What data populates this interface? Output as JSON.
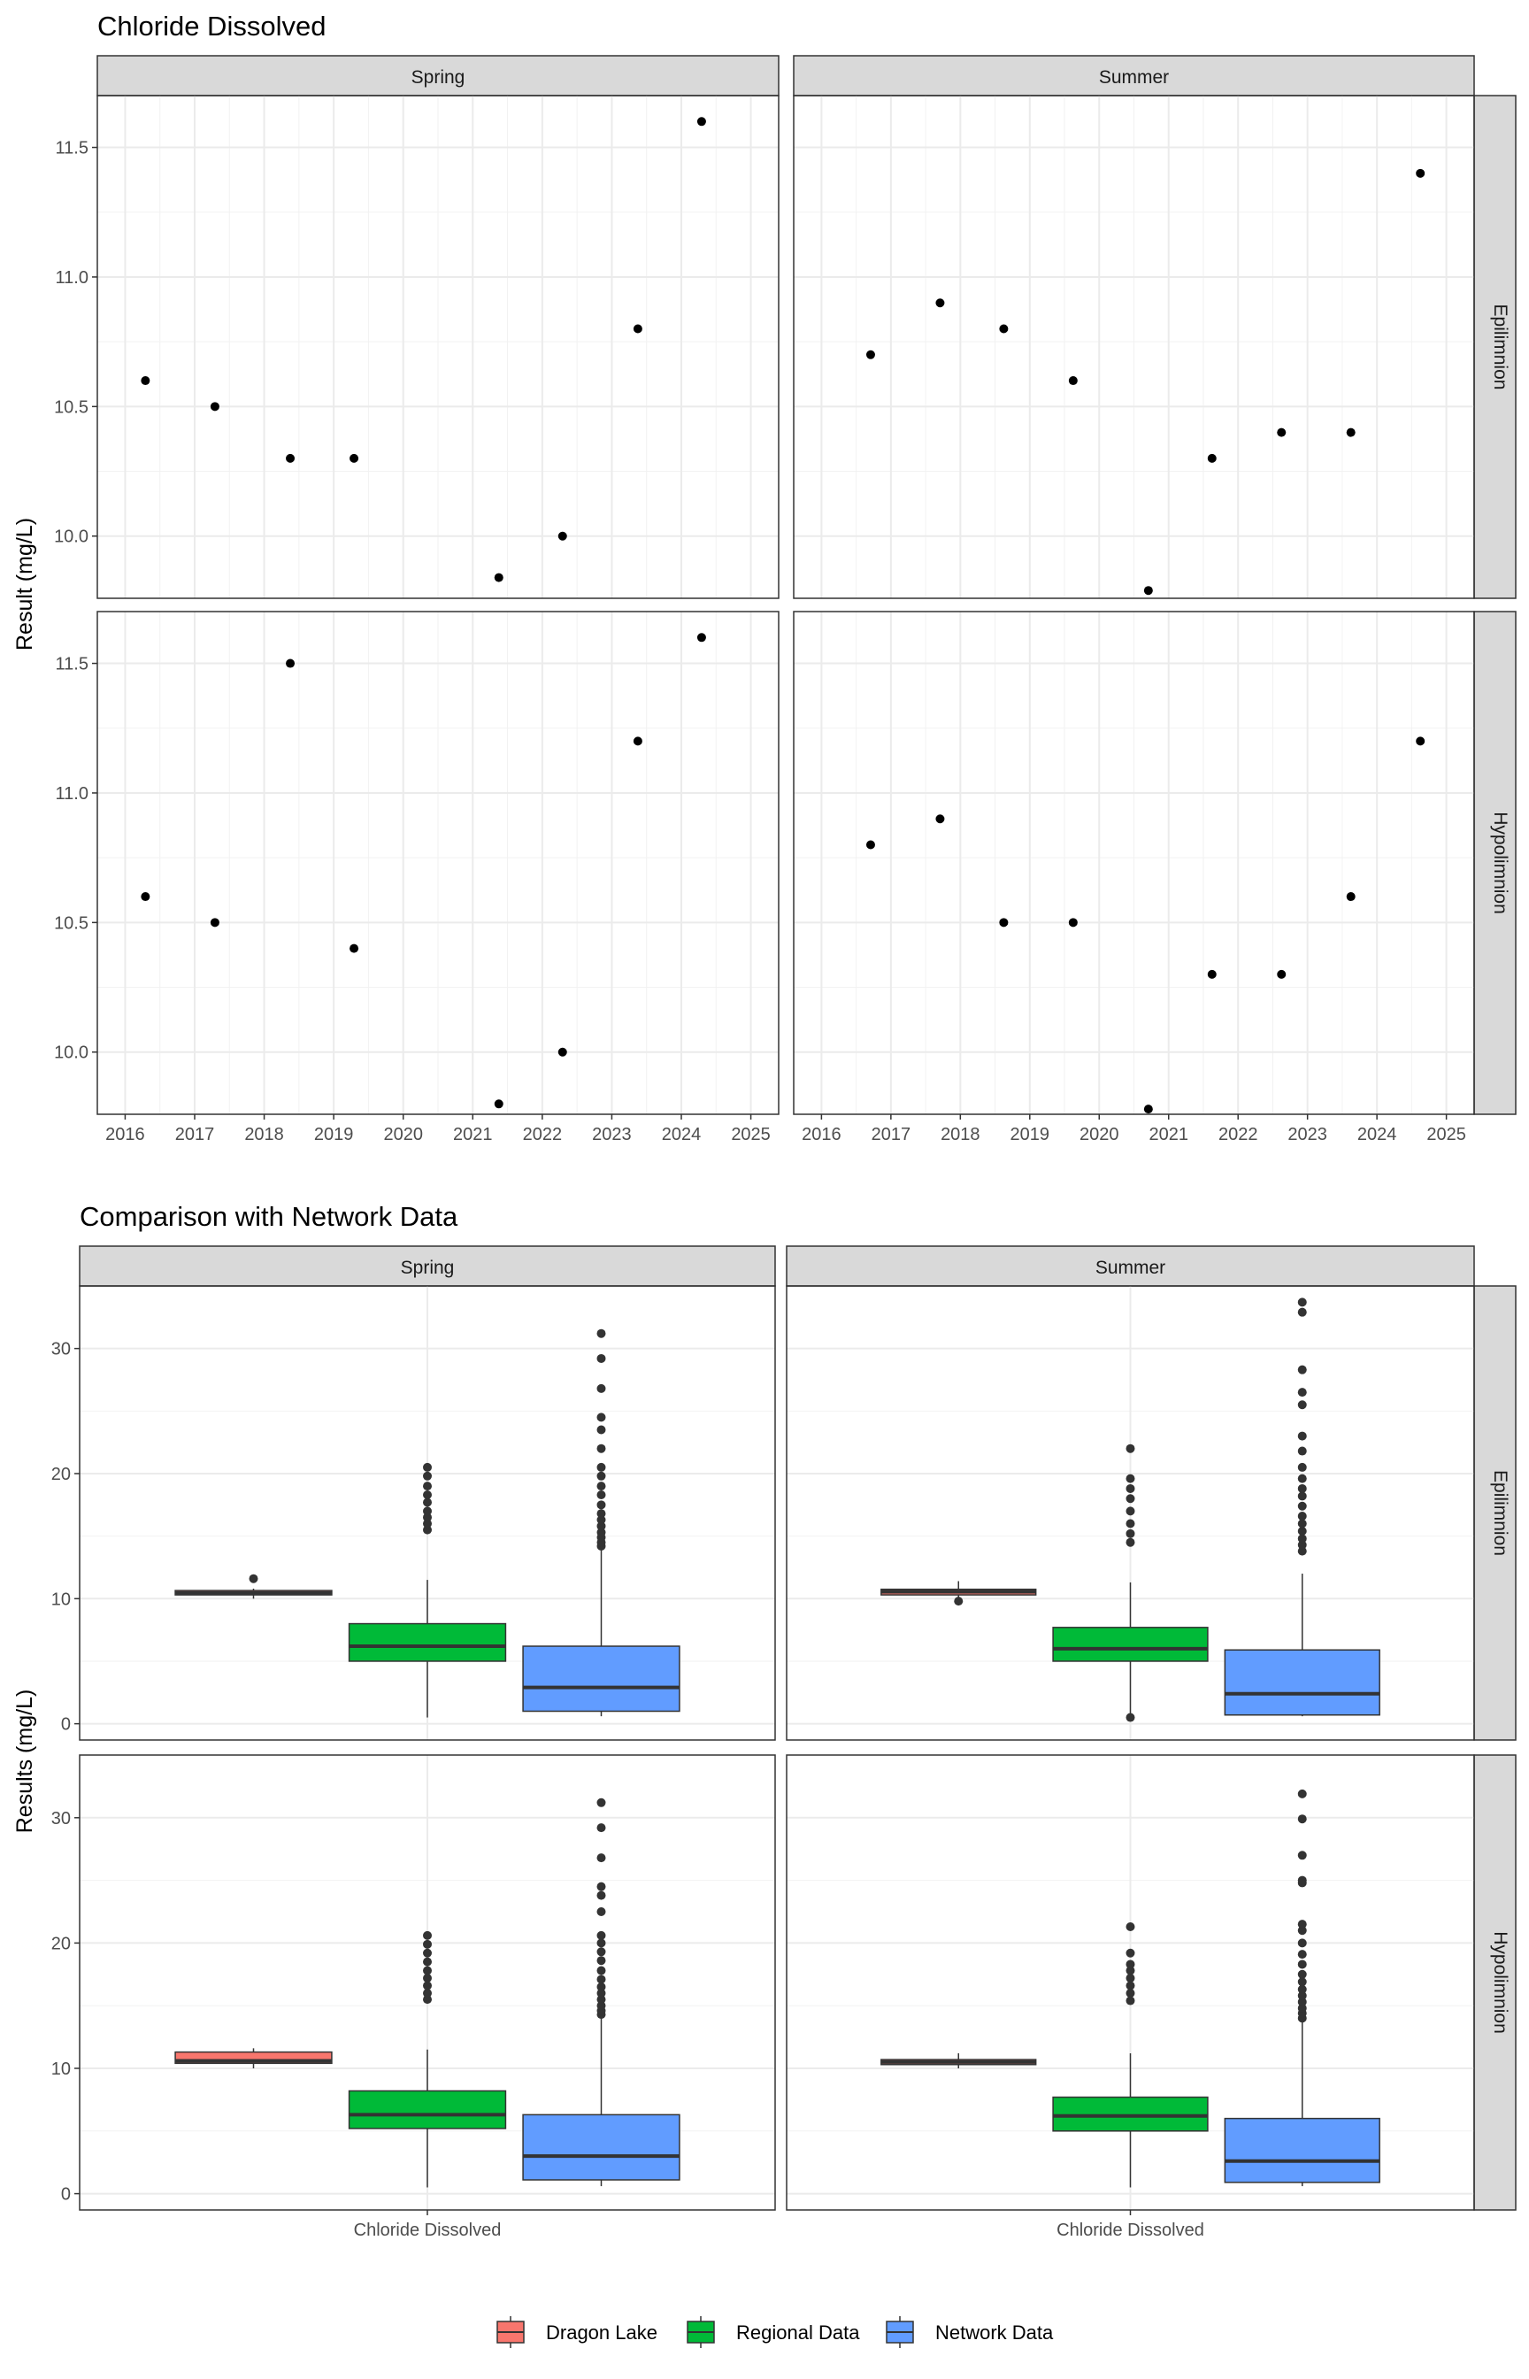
{
  "chart_data": [
    {
      "type": "scatter",
      "title": "Chloride Dissolved",
      "xlabel": "",
      "ylabel": "Result (mg/L)",
      "col_facets": [
        "Spring",
        "Summer"
      ],
      "row_facets": [
        "Epilimnion",
        "Hypolimnion"
      ],
      "xlim": [
        2015.6,
        2025.4
      ],
      "ylim": [
        9.76,
        11.7
      ],
      "x_ticks": [
        "2016",
        "2017",
        "2018",
        "2019",
        "2020",
        "2021",
        "2022",
        "2023",
        "2024",
        "2025"
      ],
      "y_ticks": [
        "10.0",
        "10.5",
        "11.0",
        "11.5"
      ],
      "grid": true,
      "panels": [
        {
          "col": "Spring",
          "row": "Epilimnion",
          "points": [
            {
              "x": "2016-04",
              "y": 10.6
            },
            {
              "x": "2017-04",
              "y": 10.5
            },
            {
              "x": "2018-05",
              "y": 10.3
            },
            {
              "x": "2019-04",
              "y": 10.3
            },
            {
              "x": "2021-05",
              "y": 9.84
            },
            {
              "x": "2022-04",
              "y": 10.0
            },
            {
              "x": "2023-05",
              "y": 10.8
            },
            {
              "x": "2024-04",
              "y": 11.6
            }
          ]
        },
        {
          "col": "Summer",
          "row": "Epilimnion",
          "points": [
            {
              "x": "2016-09",
              "y": 10.7
            },
            {
              "x": "2017-09",
              "y": 10.9
            },
            {
              "x": "2018-08",
              "y": 10.8
            },
            {
              "x": "2019-08",
              "y": 10.6
            },
            {
              "x": "2020-09",
              "y": 9.79
            },
            {
              "x": "2021-08",
              "y": 10.3
            },
            {
              "x": "2022-08",
              "y": 10.4
            },
            {
              "x": "2023-08",
              "y": 10.4
            },
            {
              "x": "2024-08",
              "y": 11.4
            }
          ]
        },
        {
          "col": "Spring",
          "row": "Hypolimnion",
          "points": [
            {
              "x": "2016-04",
              "y": 10.6
            },
            {
              "x": "2017-04",
              "y": 10.5
            },
            {
              "x": "2018-05",
              "y": 11.5
            },
            {
              "x": "2019-04",
              "y": 10.4
            },
            {
              "x": "2021-05",
              "y": 9.8
            },
            {
              "x": "2022-04",
              "y": 10.0
            },
            {
              "x": "2023-05",
              "y": 11.2
            },
            {
              "x": "2024-04",
              "y": 11.6
            }
          ]
        },
        {
          "col": "Summer",
          "row": "Hypolimnion",
          "points": [
            {
              "x": "2016-09",
              "y": 10.8
            },
            {
              "x": "2017-09",
              "y": 10.9
            },
            {
              "x": "2018-08",
              "y": 10.5
            },
            {
              "x": "2019-08",
              "y": 10.5
            },
            {
              "x": "2020-09",
              "y": 9.78
            },
            {
              "x": "2021-08",
              "y": 10.3
            },
            {
              "x": "2022-08",
              "y": 10.3
            },
            {
              "x": "2023-08",
              "y": 10.6
            },
            {
              "x": "2024-08",
              "y": 11.2
            }
          ]
        }
      ]
    },
    {
      "type": "box",
      "title": "Comparison with Network Data",
      "xlabel": "",
      "ylabel": "Results (mg/L)",
      "col_facets": [
        "Spring",
        "Summer"
      ],
      "row_facets": [
        "Epilimnion",
        "Hypolimnion"
      ],
      "category": "Chloride Dissolved",
      "ylim": [
        -1.3,
        35
      ],
      "y_ticks": [
        "0",
        "10",
        "20",
        "30"
      ],
      "grid": true,
      "legend": {
        "position": "bottom",
        "items": [
          {
            "name": "Dragon Lake",
            "color": "#F8766D"
          },
          {
            "name": "Regional Data",
            "color": "#00BA38"
          },
          {
            "name": "Network Data",
            "color": "#619CFF"
          }
        ]
      },
      "panels": [
        {
          "col": "Spring",
          "row": "Epilimnion",
          "groups": [
            {
              "name": "Dragon Lake",
              "min": 10.0,
              "q1": 10.3,
              "median": 10.45,
              "q3": 10.65,
              "max": 10.8,
              "outliers": [
                11.6
              ]
            },
            {
              "name": "Regional Data",
              "min": 0.5,
              "q1": 5.0,
              "median": 6.2,
              "q3": 8.0,
              "max": 11.5,
              "outliers": [
                15.5,
                16.0,
                16.5,
                17.0,
                17.7,
                18.3,
                19.0,
                19.8,
                20.5
              ]
            },
            {
              "name": "Network Data",
              "min": 0.6,
              "q1": 1.0,
              "median": 2.9,
              "q3": 6.2,
              "max": 14.0,
              "outliers": [
                14.2,
                14.5,
                14.9,
                15.3,
                15.8,
                16.3,
                16.8,
                17.5,
                18.3,
                19.0,
                19.8,
                20.5,
                22.0,
                23.5,
                24.5,
                26.8,
                29.2,
                31.2
              ]
            }
          ]
        },
        {
          "col": "Summer",
          "row": "Epilimnion",
          "groups": [
            {
              "name": "Dragon Lake",
              "min": 9.8,
              "q1": 10.3,
              "median": 10.55,
              "q3": 10.75,
              "max": 11.4,
              "outliers": [
                9.8
              ]
            },
            {
              "name": "Regional Data",
              "min": 0.7,
              "q1": 5.0,
              "median": 6.0,
              "q3": 7.7,
              "max": 11.3,
              "outliers": [
                0.5,
                14.5,
                15.2,
                16.0,
                17.0,
                18.0,
                18.8,
                19.6,
                22.0
              ]
            },
            {
              "name": "Network Data",
              "min": 0.6,
              "q1": 0.7,
              "median": 2.4,
              "q3": 5.9,
              "max": 12.0,
              "outliers": [
                13.8,
                14.3,
                14.8,
                15.4,
                16.0,
                16.6,
                17.4,
                18.2,
                18.8,
                19.6,
                20.5,
                21.8,
                23.0,
                25.5,
                26.5,
                28.3,
                32.9,
                33.7
              ]
            }
          ]
        },
        {
          "col": "Spring",
          "row": "Hypolimnion",
          "groups": [
            {
              "name": "Dragon Lake",
              "min": 10.0,
              "q1": 10.4,
              "median": 10.6,
              "q3": 11.3,
              "max": 11.6,
              "outliers": []
            },
            {
              "name": "Regional Data",
              "min": 0.5,
              "q1": 5.2,
              "median": 6.3,
              "q3": 8.2,
              "max": 11.5,
              "outliers": [
                15.5,
                16.0,
                16.6,
                17.2,
                17.8,
                18.5,
                19.2,
                19.9,
                20.6
              ]
            },
            {
              "name": "Network Data",
              "min": 0.6,
              "q1": 1.1,
              "median": 3.0,
              "q3": 6.3,
              "max": 14.1,
              "outliers": [
                14.3,
                14.6,
                15.0,
                15.5,
                16.0,
                16.5,
                17.1,
                17.8,
                18.6,
                19.3,
                20.0,
                20.6,
                22.5,
                23.8,
                24.5,
                26.8,
                29.2,
                31.2
              ]
            }
          ]
        },
        {
          "col": "Summer",
          "row": "Hypolimnion",
          "groups": [
            {
              "name": "Dragon Lake",
              "min": 10.0,
              "q1": 10.3,
              "median": 10.5,
              "q3": 10.7,
              "max": 11.2,
              "outliers": []
            },
            {
              "name": "Regional Data",
              "min": 0.5,
              "q1": 5.0,
              "median": 6.2,
              "q3": 7.7,
              "max": 11.2,
              "outliers": [
                15.4,
                16.0,
                16.6,
                17.2,
                17.8,
                18.3,
                19.2,
                21.3
              ]
            },
            {
              "name": "Network Data",
              "min": 0.6,
              "q1": 0.9,
              "median": 2.6,
              "q3": 6.0,
              "max": 13.8,
              "outliers": [
                14.0,
                14.4,
                14.8,
                15.3,
                15.8,
                16.3,
                16.9,
                17.5,
                18.3,
                19.1,
                20.0,
                21.0,
                21.5,
                24.8,
                25.0,
                27.0,
                29.9,
                31.9
              ]
            }
          ]
        }
      ]
    }
  ]
}
